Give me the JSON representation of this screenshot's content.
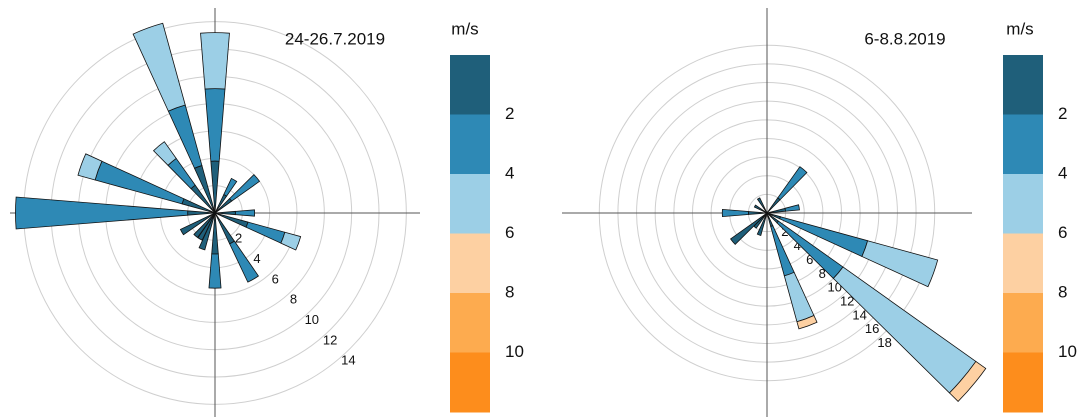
{
  "chart_data": [
    {
      "type": "windrose",
      "title": "24-26.7.2019",
      "x": [
        0,
        30,
        50,
        90,
        110,
        150,
        180,
        200,
        210,
        220,
        240,
        270,
        290,
        320,
        340
      ],
      "rlim": [
        0,
        15
      ],
      "rticks": [
        2,
        4,
        6,
        8,
        10,
        12,
        14
      ],
      "series": [
        {
          "color": "#1f5f7a",
          "values": [
            3.8,
            1.5,
            1.5,
            1.5,
            2.5,
            2.5,
            3,
            2.8,
            2.2,
            2.2,
            2.8,
            2,
            2.5,
            2.5,
            3.6
          ]
        },
        {
          "color": "#2e89b5",
          "values": [
            5.3,
            1.3,
            2.5,
            1.4,
            2.8,
            3.1,
            2.5,
            0,
            0,
            0,
            0,
            12.6,
            6.6,
            2.4,
            4.6
          ]
        },
        {
          "color": "#9ccfe6",
          "values": [
            4.1,
            0,
            0,
            0,
            1.2,
            0,
            0,
            0,
            0,
            0,
            0,
            0,
            1.3,
            1.5,
            6.2
          ]
        },
        {
          "color": "#fdd0a2",
          "values": [
            0,
            0,
            0,
            0,
            0,
            0,
            0,
            0,
            0,
            0,
            0,
            0,
            0,
            0,
            0
          ]
        },
        {
          "color": "#fdab4f",
          "values": [
            0,
            0,
            0,
            0,
            0,
            0,
            0,
            0,
            0,
            0,
            0,
            0,
            0,
            0,
            0
          ]
        },
        {
          "color": "#fd8d1c",
          "values": [
            0,
            0,
            0,
            0,
            0,
            0,
            0,
            0,
            0,
            0,
            0,
            0,
            0,
            0,
            0
          ]
        }
      ],
      "colorbar": {
        "label": "m/s",
        "clim": [
          0,
          12
        ],
        "ticks": [
          2,
          4,
          6,
          8,
          10
        ]
      }
    },
    {
      "type": "windrose",
      "title": "6-8.8.2019",
      "x": [
        40,
        80,
        110,
        130,
        160,
        200,
        220,
        230,
        270,
        300,
        330
      ],
      "rlim": [
        0,
        22
      ],
      "rticks": [
        2,
        4,
        6,
        8,
        10,
        12,
        14,
        16,
        18
      ],
      "series": [
        {
          "color": "#1f5f7a",
          "values": [
            2,
            2,
            1.5,
            1.5,
            1.5,
            2.5,
            2,
            4.8,
            2,
            1.5,
            1.8
          ]
        },
        {
          "color": "#2e89b5",
          "values": [
            4.1,
            1.5,
            9.7,
            8.5,
            5.5,
            0,
            0,
            0,
            2.8,
            0,
            0
          ]
        },
        {
          "color": "#9ccfe6",
          "values": [
            0,
            0,
            7.8,
            17.5,
            5.1,
            0,
            0,
            0,
            0,
            0,
            0
          ]
        },
        {
          "color": "#fdd0a2",
          "values": [
            0,
            0,
            0,
            1.3,
            0.8,
            0,
            0,
            0,
            0,
            0,
            0
          ]
        },
        {
          "color": "#fdab4f",
          "values": [
            0,
            0,
            0,
            0,
            0,
            0,
            0,
            0,
            0,
            0,
            0
          ]
        },
        {
          "color": "#fd8d1c",
          "values": [
            0,
            0,
            0,
            0,
            0,
            0,
            0,
            0,
            0,
            0,
            0
          ]
        }
      ],
      "colorbar": {
        "label": "m/s",
        "clim": [
          0,
          12
        ],
        "ticks": [
          2,
          4,
          6,
          8,
          10
        ]
      }
    }
  ]
}
